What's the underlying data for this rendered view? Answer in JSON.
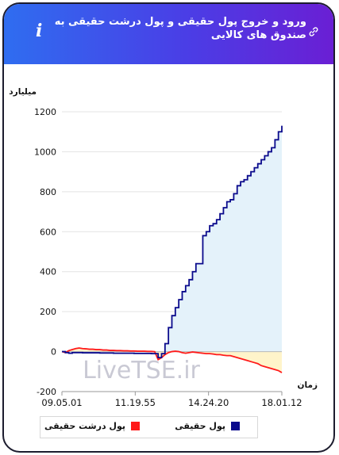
{
  "header": {
    "title": "ورود و خروج پول حقیقی و پول درشت حقیقی به صندوق های کالایی"
  },
  "watermark": "LiveTSE.ir",
  "colors": {
    "header_start": "#2f6df0",
    "header_end": "#6a1fd4",
    "real_money": "#0a0a8c",
    "real_money_fill": "#e4f2fa",
    "big_real_money": "#ff1a1a",
    "big_real_money_fill": "#fff3c4"
  },
  "chart_data": {
    "type": "line",
    "ylabel": "میلیارد تومان",
    "xlabel": "زمان",
    "ylim": [
      -200,
      1200
    ],
    "y_ticks": [
      1200,
      1000,
      800,
      600,
      400,
      200,
      0,
      -200
    ],
    "x_ticks": [
      "09.05.01",
      "11.19.55",
      "14.24.20",
      "18.01.12"
    ],
    "grid": true,
    "legend_position": "bottom",
    "series": [
      {
        "name": "پول حقیقی",
        "style": "step-line",
        "values": [
          0,
          -5,
          -8,
          -5,
          -5,
          -5,
          -6,
          -6,
          -6,
          -6,
          -6,
          -7,
          -7,
          -7,
          -7,
          -8,
          -8,
          -8,
          -8,
          -8,
          -8,
          -9,
          -9,
          -9,
          -9,
          -9,
          -10,
          -10,
          -30,
          -10,
          40,
          120,
          180,
          220,
          260,
          300,
          330,
          360,
          400,
          440,
          440,
          580,
          600,
          630,
          640,
          660,
          690,
          720,
          750,
          760,
          790,
          830,
          850,
          860,
          880,
          900,
          920,
          940,
          960,
          980,
          1000,
          1020,
          1060,
          1100,
          1130
        ]
      },
      {
        "name": "پول درشت حقیقی",
        "style": "line",
        "values": [
          0,
          -5,
          5,
          10,
          15,
          18,
          15,
          14,
          12,
          12,
          10,
          10,
          8,
          8,
          6,
          6,
          5,
          5,
          4,
          4,
          3,
          3,
          2,
          2,
          2,
          1,
          1,
          0,
          -40,
          -30,
          -15,
          -5,
          0,
          2,
          0,
          -5,
          -8,
          -5,
          -2,
          -4,
          -6,
          -8,
          -10,
          -10,
          -12,
          -15,
          -15,
          -18,
          -20,
          -20,
          -25,
          -30,
          -35,
          -40,
          -45,
          -50,
          -55,
          -60,
          -70,
          -75,
          -80,
          -85,
          -90,
          -95,
          -105
        ]
      }
    ]
  },
  "legend": {
    "real_money": "پول حقیقی",
    "big_real_money": "پول درشت حقیقی"
  }
}
